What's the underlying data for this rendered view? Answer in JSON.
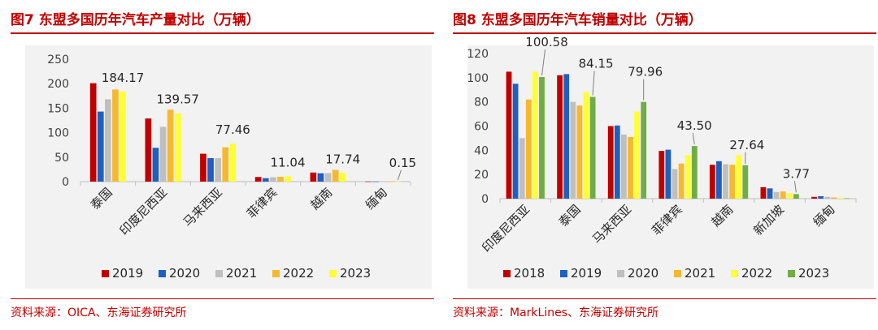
{
  "chart_data": [
    {
      "type": "bar",
      "title": "图7  东盟多国历年汽车产量对比（万辆）",
      "source": "资料来源：OICA、东海证券研究所",
      "categories": [
        "泰国",
        "印度尼西亚",
        "马来西亚",
        "菲律宾",
        "越南",
        "缅甸"
      ],
      "ylim": [
        0,
        250
      ],
      "yticks": [
        "250",
        "200",
        "150",
        "100",
        "50",
        "0"
      ],
      "series": [
        {
          "name": "2019",
          "color": "#c00000",
          "values": [
            201,
            129,
            57,
            9.5,
            18.5,
            0.3
          ]
        },
        {
          "name": "2020",
          "color": "#1f5fbf",
          "values": [
            143,
            69,
            48,
            7,
            17,
            0.2
          ]
        },
        {
          "name": "2021",
          "color": "#bfbfbf",
          "values": [
            168,
            112,
            48,
            9,
            17,
            0.2
          ]
        },
        {
          "name": "2022",
          "color": "#f5b830",
          "values": [
            188,
            147,
            70,
            10,
            24,
            0.2
          ]
        },
        {
          "name": "2023",
          "color": "#ffff33",
          "values": [
            184.17,
            139.57,
            77.46,
            11.04,
            17.74,
            0.15
          ]
        }
      ],
      "annotations": [
        "184.17",
        "139.57",
        "77.46",
        "11.04",
        "17.74",
        "0.15"
      ]
    },
    {
      "type": "bar",
      "title": "图8  东盟多国历年汽车销量对比（万辆）",
      "source": "资料来源：MarkLines、东海证券研究所",
      "categories": [
        "印度尼西亚",
        "泰国",
        "马来西亚",
        "菲律宾",
        "越南",
        "新加坡",
        "缅甸"
      ],
      "ylim": [
        0,
        120
      ],
      "yticks": [
        "120",
        "100",
        "80",
        "60",
        "40",
        "20",
        "0"
      ],
      "series": [
        {
          "name": "2018",
          "color": "#c00000",
          "values": [
            105,
            102,
            60,
            39.5,
            28,
            9.5,
            1.5
          ]
        },
        {
          "name": "2019",
          "color": "#1f5fbf",
          "values": [
            95,
            103,
            60.5,
            40.5,
            31,
            8.5,
            2
          ]
        },
        {
          "name": "2020",
          "color": "#bfbfbf",
          "values": [
            50,
            80,
            53,
            24.5,
            28.5,
            5.5,
            1.5
          ]
        },
        {
          "name": "2021",
          "color": "#f5b830",
          "values": [
            82,
            77,
            51,
            29,
            28,
            6,
            1
          ]
        },
        {
          "name": "2022",
          "color": "#ffff33",
          "values": [
            105,
            88,
            72,
            36,
            36,
            4.5,
            0.8
          ]
        },
        {
          "name": "2023",
          "color": "#70ad47",
          "values": [
            100.58,
            84.15,
            79.96,
            43.5,
            27.64,
            3.77,
            0.3
          ]
        }
      ],
      "annotations": [
        "100.58",
        "84.15",
        "79.96",
        "43.50",
        "27.64",
        "3.77"
      ]
    }
  ]
}
